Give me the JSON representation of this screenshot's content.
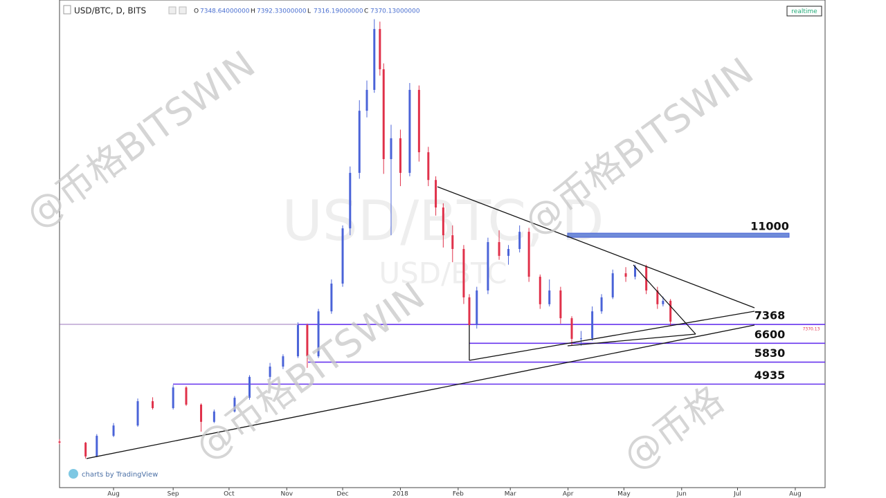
{
  "chart_data": {
    "type": "candlestick",
    "header": {
      "symbol": "USD/BTC, D, BITS",
      "ohlc": [
        {
          "label": "O",
          "value": "7348.64000000"
        },
        {
          "label": "H",
          "value": "7392.33000000"
        },
        {
          "label": "L",
          "value": "7316.19000000"
        },
        {
          "label": "C",
          "value": "7370.13000000"
        }
      ],
      "button": "realtime"
    },
    "background_title": "USD/BTC, D",
    "background_subtitle": "USD/BTC",
    "watermarks": [
      "@币格BITSWIN",
      "@币格BITSWIN",
      "@币格BITSWIN",
      "@币格"
    ],
    "credit": "charts by TradingView",
    "xlim": [
      0,
      411
    ],
    "ylim": [
      720,
      20440
    ],
    "xticks": [
      {
        "value": 29,
        "label": "Aug"
      },
      {
        "value": 61,
        "label": "Sep"
      },
      {
        "value": 91,
        "label": "Oct"
      },
      {
        "value": 122,
        "label": "Nov"
      },
      {
        "value": 152,
        "label": "Dec"
      },
      {
        "value": 183,
        "label": "2018"
      },
      {
        "value": 214,
        "label": "Feb"
      },
      {
        "value": 242,
        "label": "Mar"
      },
      {
        "value": 273,
        "label": "Apr"
      },
      {
        "value": 303,
        "label": "May"
      },
      {
        "value": 334,
        "label": "Jun"
      },
      {
        "value": 364,
        "label": "Jul"
      },
      {
        "value": 395,
        "label": "Aug"
      }
    ],
    "up_color": "#4a63d8",
    "down_color": "#e0314a",
    "level_color": "#6633ee",
    "band_color": "#6f8bd8",
    "candles": {
      "x": [
        0,
        14,
        20,
        29,
        42,
        50,
        61,
        68,
        76,
        83,
        94,
        102,
        113,
        120,
        128,
        133,
        139,
        146,
        152,
        156,
        161,
        165,
        169,
        172,
        174,
        178,
        183,
        188,
        193,
        198,
        202,
        206,
        211,
        217,
        220,
        224,
        230,
        236,
        241,
        247,
        252,
        258,
        263,
        269,
        275,
        280,
        286,
        291,
        297,
        304,
        309,
        315,
        321,
        324,
        328
      ],
      "open": [
        2600,
        2550,
        1990,
        2830,
        3250,
        4240,
        3960,
        4800,
        4100,
        3400,
        3820,
        4380,
        5230,
        5650,
        6070,
        7340,
        6070,
        7900,
        9030,
        11280,
        13540,
        16070,
        16920,
        19400,
        17760,
        14100,
        14950,
        13540,
        16920,
        14380,
        13250,
        12130,
        11000,
        10440,
        8470,
        7340,
        8750,
        10720,
        10160,
        10440,
        11140,
        9310,
        8190,
        8750,
        7620,
        6780,
        6800,
        7900,
        8470,
        9450,
        9310,
        9730,
        8750,
        8190,
        8330
      ],
      "high": [
        2700,
        2580,
        2900,
        3350,
        4350,
        4400,
        4900,
        4850,
        4150,
        3900,
        4450,
        5300,
        5800,
        6150,
        7450,
        7400,
        8000,
        9200,
        11400,
        13800,
        16500,
        17300,
        19800,
        19700,
        18000,
        15500,
        15300,
        17200,
        17100,
        14600,
        13400,
        12300,
        11400,
        10600,
        8600,
        8900,
        10900,
        11200,
        10600,
        11400,
        11300,
        9400,
        9200,
        8900,
        7700,
        7100,
        8100,
        8600,
        9600,
        9700,
        9800,
        9800,
        8900,
        8500,
        8400
      ],
      "low": [
        2480,
        1900,
        1960,
        2780,
        3200,
        3900,
        3900,
        4050,
        3000,
        3350,
        3780,
        4300,
        5100,
        5550,
        6000,
        5600,
        6000,
        7800,
        8900,
        11000,
        13300,
        15800,
        16800,
        17500,
        13500,
        11000,
        13000,
        13400,
        14000,
        13000,
        11800,
        10500,
        9900,
        8200,
        6000,
        7200,
        8600,
        10000,
        9800,
        10300,
        9100,
        8000,
        8100,
        7400,
        6500,
        6500,
        6700,
        7800,
        8400,
        9100,
        9200,
        8600,
        8000,
        8100,
        7300
      ],
      "close": [
        2550,
        1990,
        2830,
        3250,
        4240,
        3960,
        4800,
        4100,
        3400,
        3820,
        4380,
        5230,
        5650,
        6070,
        7340,
        6070,
        7900,
        9030,
        11280,
        13540,
        16070,
        16920,
        19400,
        17760,
        14100,
        14950,
        13540,
        16920,
        14380,
        13250,
        12130,
        11000,
        10440,
        8470,
        7340,
        8750,
        10720,
        10160,
        10440,
        11140,
        9310,
        8190,
        8750,
        7620,
        6780,
        6800,
        7900,
        8470,
        9450,
        9310,
        9730,
        8750,
        8190,
        8330,
        7480
      ]
    },
    "levels": [
      11000,
      7368,
      6600,
      5830,
      4935
    ],
    "last_price": 7370.13
  }
}
